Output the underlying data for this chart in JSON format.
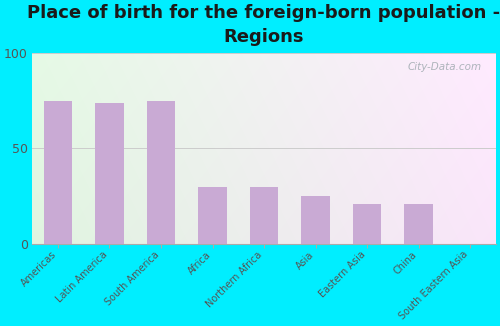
{
  "categories": [
    "Americas",
    "Latin America",
    "South America",
    "Africa",
    "Northern Africa",
    "Asia",
    "Eastern Asia",
    "China",
    "South Eastern Asia"
  ],
  "values": [
    75,
    74,
    75,
    30,
    30,
    25,
    21,
    21,
    0
  ],
  "bar_color": "#c9aad4",
  "title_line1": "Place of birth for the foreign-born population -",
  "title_line2": "Regions",
  "title_fontsize": 13,
  "ylim": [
    0,
    100
  ],
  "yticks": [
    0,
    50,
    100
  ],
  "background_outer": "#00eeff",
  "bg_color_bottom_left": "#daf0d0",
  "bg_color_top_right": "#f8f4fc",
  "grid_color": "#cccccc",
  "watermark": "City-Data.com",
  "bar_width": 0.55,
  "ytick_fontsize": 9,
  "xtick_fontsize": 7,
  "title_color": "#1a1a1a"
}
